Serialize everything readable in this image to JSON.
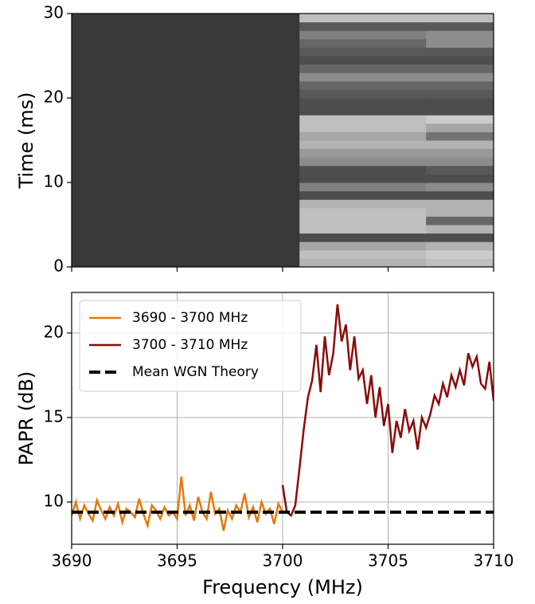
{
  "chart_data": [
    {
      "type": "heatmap",
      "ylabel": "Time (ms)",
      "xlim": [
        3690,
        3710
      ],
      "ylim": [
        0,
        30
      ],
      "xticks": [
        3690,
        3695,
        3700,
        3705,
        3710
      ],
      "yticks": [
        0,
        10,
        20,
        30
      ],
      "x_edges": [
        3690,
        3700,
        3700.8,
        3706.8,
        3710
      ],
      "y_edges": [
        0,
        1,
        2,
        3,
        4,
        5,
        6,
        7,
        8,
        9,
        10,
        11,
        12,
        13,
        14,
        15,
        16,
        17,
        18,
        19,
        20,
        21,
        22,
        23,
        24,
        25,
        26,
        27,
        28,
        29,
        30
      ],
      "z": [
        [
          0.22,
          0.22,
          0.7,
          0.75
        ],
        [
          0.22,
          0.22,
          0.75,
          0.8
        ],
        [
          0.22,
          0.22,
          0.65,
          0.7
        ],
        [
          0.22,
          0.22,
          0.3,
          0.3
        ],
        [
          0.22,
          0.22,
          0.75,
          0.7
        ],
        [
          0.22,
          0.22,
          0.75,
          0.4
        ],
        [
          0.22,
          0.22,
          0.75,
          0.7
        ],
        [
          0.22,
          0.22,
          0.7,
          0.7
        ],
        [
          0.22,
          0.22,
          0.3,
          0.3
        ],
        [
          0.22,
          0.22,
          0.5,
          0.55
        ],
        [
          0.22,
          0.22,
          0.3,
          0.3
        ],
        [
          0.22,
          0.22,
          0.3,
          0.35
        ],
        [
          0.22,
          0.22,
          0.55,
          0.55
        ],
        [
          0.22,
          0.22,
          0.6,
          0.6
        ],
        [
          0.22,
          0.22,
          0.7,
          0.7
        ],
        [
          0.22,
          0.22,
          0.65,
          0.45
        ],
        [
          0.22,
          0.22,
          0.75,
          0.65
        ],
        [
          0.22,
          0.22,
          0.75,
          0.8
        ],
        [
          0.22,
          0.22,
          0.3,
          0.3
        ],
        [
          0.22,
          0.22,
          0.3,
          0.3
        ],
        [
          0.22,
          0.22,
          0.35,
          0.35
        ],
        [
          0.22,
          0.22,
          0.4,
          0.4
        ],
        [
          0.22,
          0.22,
          0.55,
          0.55
        ],
        [
          0.22,
          0.22,
          0.4,
          0.4
        ],
        [
          0.22,
          0.22,
          0.3,
          0.3
        ],
        [
          0.22,
          0.22,
          0.35,
          0.35
        ],
        [
          0.22,
          0.22,
          0.4,
          0.55
        ],
        [
          0.22,
          0.22,
          0.5,
          0.55
        ],
        [
          0.22,
          0.22,
          0.35,
          0.35
        ],
        [
          0.22,
          0.22,
          0.75,
          0.75
        ]
      ]
    },
    {
      "type": "line",
      "xlabel": "Frequency (MHz)",
      "ylabel": "PAPR (dB)",
      "xlim": [
        3690,
        3710
      ],
      "ylim": [
        7.5,
        22.4
      ],
      "xticks": [
        3690,
        3695,
        3700,
        3705,
        3710
      ],
      "yticks": [
        10,
        15,
        20
      ],
      "grid": true,
      "legend": "upper left",
      "series": [
        {
          "name": "3690 - 3700 MHz",
          "color": "#e07b10",
          "linestyle": "solid",
          "x": [
            3690,
            3690.2,
            3690.4,
            3690.6,
            3690.8,
            3691,
            3691.2,
            3691.4,
            3691.6,
            3691.8,
            3692,
            3692.2,
            3692.4,
            3692.6,
            3692.8,
            3693,
            3693.2,
            3693.4,
            3693.6,
            3693.8,
            3694,
            3694.2,
            3694.4,
            3694.6,
            3694.8,
            3695,
            3695.2,
            3695.4,
            3695.6,
            3695.8,
            3696,
            3696.2,
            3696.4,
            3696.6,
            3696.8,
            3697,
            3697.2,
            3697.4,
            3697.6,
            3697.8,
            3698,
            3698.2,
            3698.4,
            3698.6,
            3698.8,
            3699,
            3699.2,
            3699.4,
            3699.6,
            3699.8,
            3700
          ],
          "values": [
            9.2,
            10.0,
            9.0,
            9.8,
            9.3,
            8.9,
            10.1,
            9.5,
            9.0,
            9.7,
            9.2,
            9.9,
            8.8,
            9.6,
            9.4,
            9.1,
            10.2,
            9.3,
            8.6,
            9.8,
            9.5,
            9.0,
            9.7,
            9.2,
            9.4,
            9.0,
            11.5,
            9.2,
            9.8,
            8.9,
            10.3,
            9.4,
            9.0,
            10.6,
            9.3,
            9.6,
            8.3,
            9.5,
            9.0,
            9.8,
            9.4,
            10.5,
            9.1,
            9.7,
            8.8,
            10.0,
            9.3,
            9.6,
            8.7,
            9.9,
            9.4
          ]
        },
        {
          "name": "3700 - 3710 MHz",
          "color": "#8b0a0a",
          "linestyle": "solid",
          "x": [
            3700,
            3700.2,
            3700.4,
            3700.6,
            3700.8,
            3701,
            3701.2,
            3701.4,
            3701.6,
            3701.8,
            3702,
            3702.2,
            3702.4,
            3702.6,
            3702.8,
            3703,
            3703.2,
            3703.4,
            3703.6,
            3703.8,
            3704,
            3704.2,
            3704.4,
            3704.6,
            3704.8,
            3705,
            3705.2,
            3705.4,
            3705.6,
            3705.8,
            3706,
            3706.2,
            3706.4,
            3706.6,
            3706.8,
            3707,
            3707.2,
            3707.4,
            3707.6,
            3707.8,
            3708,
            3708.2,
            3708.4,
            3708.6,
            3708.8,
            3709,
            3709.2,
            3709.4,
            3709.6,
            3709.8,
            3710
          ],
          "values": [
            11.0,
            9.4,
            9.2,
            9.8,
            12.0,
            14.3,
            16.2,
            17.2,
            19.3,
            16.5,
            19.8,
            17.5,
            18.8,
            21.7,
            19.5,
            20.5,
            17.8,
            19.8,
            17.3,
            17.8,
            15.8,
            17.5,
            15.0,
            16.8,
            14.5,
            15.8,
            12.9,
            14.8,
            13.8,
            15.5,
            14.2,
            14.8,
            13.1,
            15.0,
            14.4,
            15.2,
            16.3,
            15.8,
            17.0,
            16.2,
            17.5,
            16.8,
            17.8,
            16.9,
            18.8,
            18.0,
            18.6,
            17.0,
            16.7,
            18.3,
            16.0
          ]
        },
        {
          "name": "Mean WGN Theory",
          "color": "#000000",
          "linestyle": "dashed",
          "x": [
            3690,
            3710
          ],
          "values": [
            9.4,
            9.4
          ]
        }
      ]
    }
  ]
}
